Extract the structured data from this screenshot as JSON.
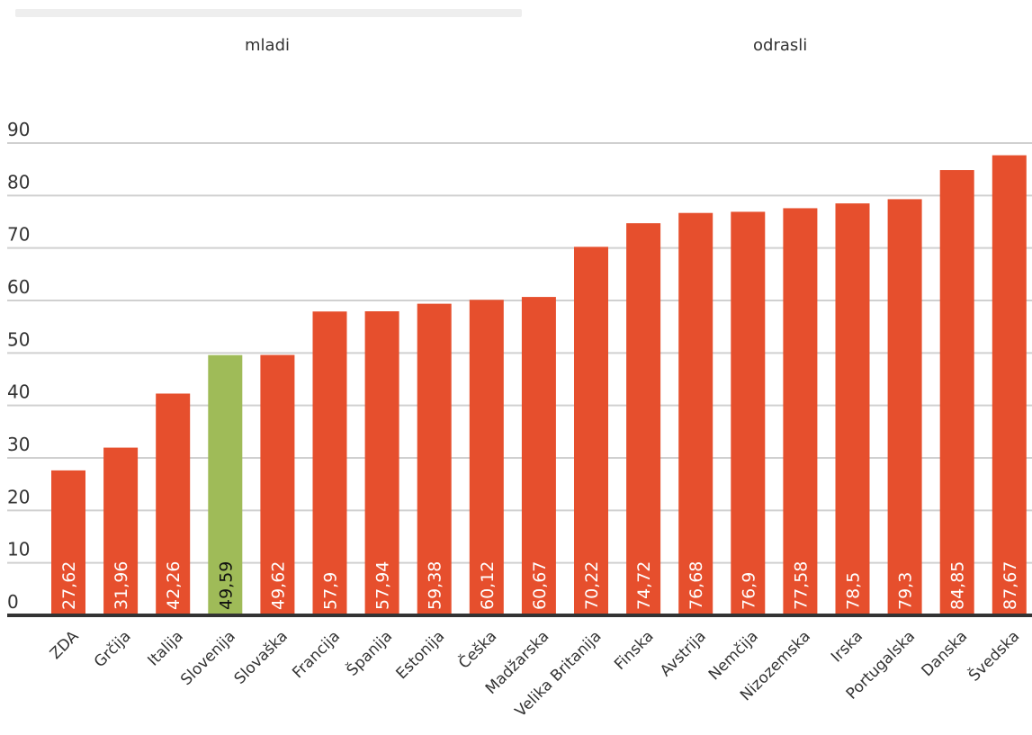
{
  "tabs": [
    {
      "label": "mladi"
    },
    {
      "label": "odrasli"
    }
  ],
  "colors": {
    "bar": "#e64f2d",
    "highlight": "#9fbb58",
    "grid": "#d0d0d0",
    "baseline": "#333333",
    "value_label": "#ffffff",
    "highlight_value_label": "#111111"
  },
  "chart_data": {
    "type": "bar",
    "categories": [
      "ZDA",
      "Grčija",
      "Italija",
      "Slovenija",
      "Slovaška",
      "Francija",
      "Španija",
      "Estonija",
      "Češka",
      "Madžarska",
      "Velika Britanija",
      "Finska",
      "Avstrija",
      "Nemčija",
      "Nizozemska",
      "Irska",
      "Portugalska",
      "Danska",
      "Švedska"
    ],
    "values": [
      27.62,
      31.96,
      42.26,
      49.59,
      49.62,
      57.9,
      57.94,
      59.38,
      60.12,
      60.67,
      70.22,
      74.72,
      76.68,
      76.9,
      77.58,
      78.5,
      79.3,
      84.85,
      87.67
    ],
    "value_labels": [
      "27,62",
      "31,96",
      "42,26",
      "49,59",
      "49,62",
      "57,9",
      "57,94",
      "59,38",
      "60,12",
      "60,67",
      "70,22",
      "74,72",
      "76,68",
      "76,9",
      "77,58",
      "78,5",
      "79,3",
      "84,85",
      "87,67"
    ],
    "highlight": "Slovenija",
    "yticks": [
      0,
      10,
      20,
      30,
      40,
      50,
      60,
      70,
      80,
      90
    ],
    "ylim": [
      0,
      90
    ],
    "grid": true,
    "title": "",
    "xlabel": "",
    "ylabel": ""
  }
}
